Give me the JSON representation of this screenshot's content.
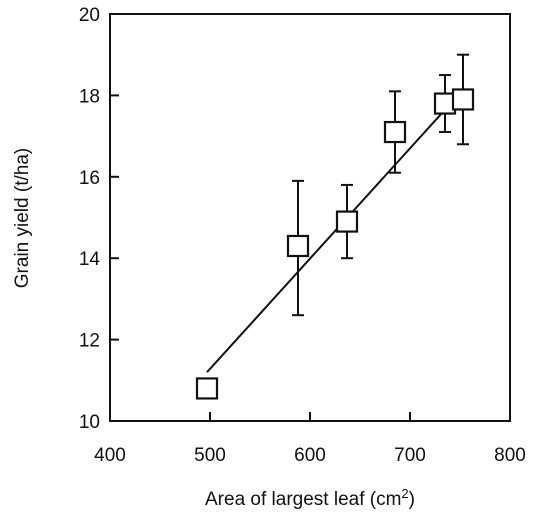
{
  "chart_data": {
    "type": "scatter",
    "title": "",
    "xlabel": "Area of largest leaf (cm",
    "xlabel_superscript": "2",
    "xlabel_suffix": ")",
    "ylabel": "Grain yield (t/ha)",
    "xlim": [
      400,
      800
    ],
    "ylim": [
      10,
      20
    ],
    "x_ticks": [
      400,
      500,
      600,
      700,
      800
    ],
    "y_ticks": [
      10,
      12,
      14,
      16,
      18,
      20
    ],
    "grid": false,
    "legend": "none",
    "marker": "open-square",
    "points": [
      {
        "x": 497,
        "y": 10.8,
        "err_low": null,
        "err_high": null
      },
      {
        "x": 588,
        "y": 14.3,
        "err_low": 12.6,
        "err_high": 15.9
      },
      {
        "x": 637,
        "y": 14.9,
        "err_low": 14.0,
        "err_high": 15.8
      },
      {
        "x": 685,
        "y": 17.1,
        "err_low": 16.1,
        "err_high": 18.1
      },
      {
        "x": 735,
        "y": 17.8,
        "err_low": 17.1,
        "err_high": 18.5
      },
      {
        "x": 753,
        "y": 17.9,
        "err_low": 16.8,
        "err_high": 19.0
      }
    ],
    "fit_line": {
      "x": [
        497,
        748
      ],
      "y": [
        11.2,
        18.0
      ]
    }
  }
}
